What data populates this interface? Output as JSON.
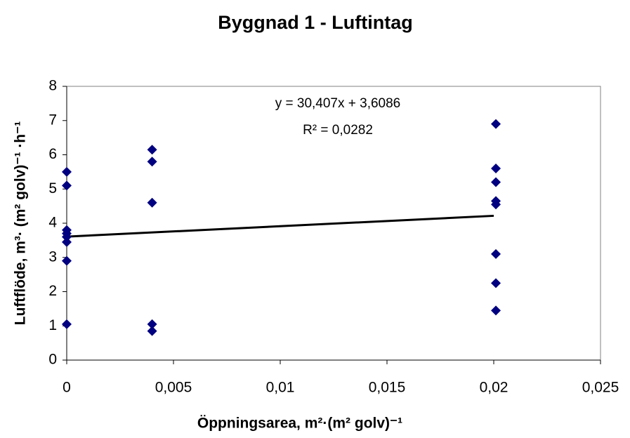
{
  "chart_data": {
    "type": "scatter",
    "title": "Byggnad 1 - Luftintag",
    "x_label": "Öppningsarea, m²·(m² golv)⁻¹",
    "y_label": "Luftflöde, m³· (m² golv)⁻¹ ·h⁻¹",
    "annotations": [
      "y = 30,407x + 3,6086",
      "R² = 0,0282"
    ],
    "xlim": [
      0,
      0.025
    ],
    "xticks": [
      0,
      {
        "value": 0.005,
        "label": "0,005"
      },
      {
        "value": 0.01,
        "label": "0,01"
      },
      {
        "value": 0.015,
        "label": "0,015"
      },
      {
        "value": 0.02,
        "label": "0,02"
      },
      {
        "value": 0.025,
        "label": "0,025"
      }
    ],
    "ylim": [
      0,
      8
    ],
    "yticks": [
      0,
      1,
      2,
      3,
      4,
      5,
      6,
      7,
      8
    ],
    "grid": false,
    "series": [
      {
        "color": "#000080",
        "x": [
          0,
          0,
          0,
          0,
          0,
          0,
          0,
          0,
          0.004,
          0.004,
          0.004,
          0.004,
          0.004,
          0.0201,
          0.0201,
          0.0201,
          0.0201,
          0.0201,
          0.0201,
          0.0201,
          0.0201
        ],
        "values": [
          5.5,
          5.1,
          3.8,
          3.7,
          3.6,
          3.45,
          2.9,
          1.05,
          6.15,
          5.8,
          4.6,
          1.05,
          0.85,
          6.9,
          5.6,
          5.2,
          4.65,
          4.55,
          3.1,
          2.25,
          1.45
        ]
      }
    ],
    "trendline": {
      "color": "#000000",
      "x": [
        0,
        0.02
      ],
      "values": [
        3.6086,
        4.2167
      ]
    }
  }
}
